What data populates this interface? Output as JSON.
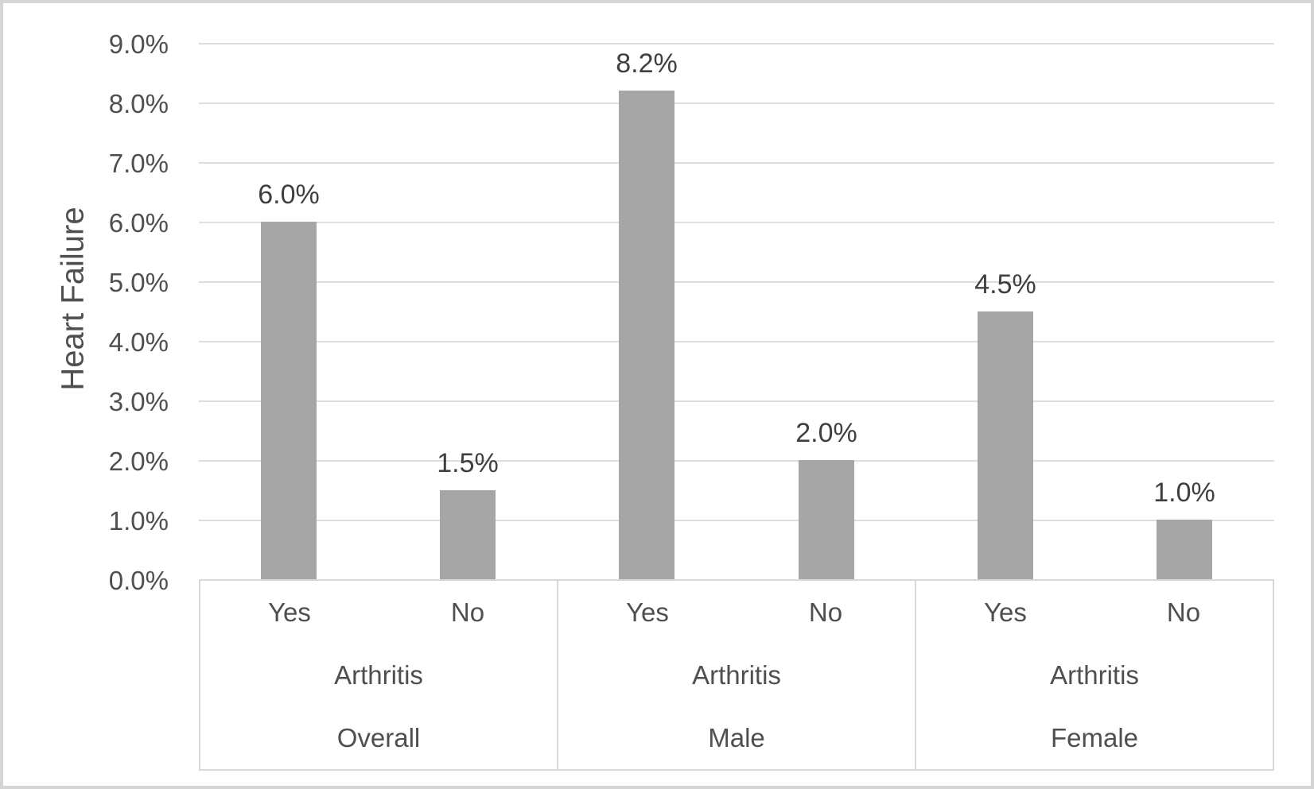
{
  "chart_data": {
    "type": "bar",
    "title": "",
    "xlabel": "",
    "ylabel": "Heart Failure",
    "unit": "percent",
    "ylim": [
      0,
      9
    ],
    "ytick_step": 1,
    "grid": true,
    "legend": false,
    "ytick_labels": [
      "0.0%",
      "1.0%",
      "2.0%",
      "3.0%",
      "4.0%",
      "5.0%",
      "6.0%",
      "7.0%",
      "8.0%",
      "9.0%"
    ],
    "axis_mid_level_label": "Arthritis",
    "groups": [
      {
        "label": "Overall",
        "axis_title": "Arthritis",
        "bars": [
          {
            "category": "Yes",
            "value": 6.0,
            "label": "6.0%"
          },
          {
            "category": "No",
            "value": 1.5,
            "label": "1.5%"
          }
        ]
      },
      {
        "label": "Male",
        "axis_title": "Arthritis",
        "bars": [
          {
            "category": "Yes",
            "value": 8.2,
            "label": "8.2%"
          },
          {
            "category": "No",
            "value": 2.0,
            "label": "2.0%"
          }
        ]
      },
      {
        "label": "Female",
        "axis_title": "Arthritis",
        "bars": [
          {
            "category": "Yes",
            "value": 4.5,
            "label": "4.5%"
          },
          {
            "category": "No",
            "value": 1.0,
            "label": "1.0%"
          }
        ]
      }
    ],
    "colors": {
      "bar": "#a6a6a6",
      "gridline": "#dedede",
      "axis_box_border": "#d9d9d9",
      "axis_text": "#4f4f4f",
      "data_label_text": "#3f3f3f",
      "chart_border": "#d5d5d5",
      "background": "#ffffff"
    }
  }
}
